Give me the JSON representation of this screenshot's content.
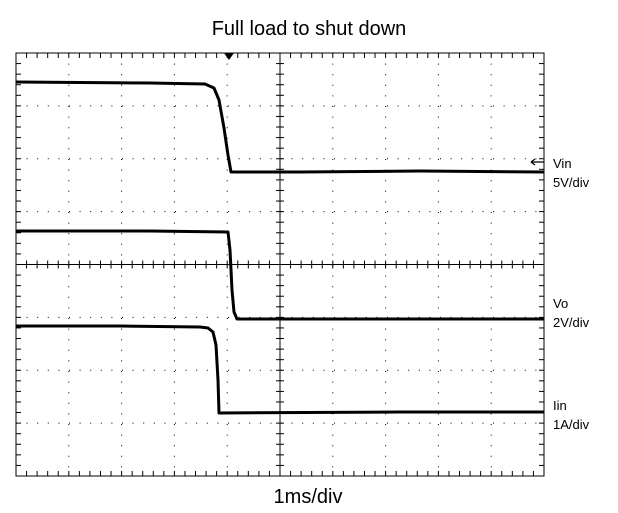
{
  "title": "Full load to shut down",
  "x_label": "1ms/div",
  "channels": [
    {
      "name": "Vin",
      "scale": "5V/div"
    },
    {
      "name": "Vo",
      "scale": "2V/div"
    },
    {
      "name": "Iin",
      "scale": "1A/div"
    }
  ]
}
